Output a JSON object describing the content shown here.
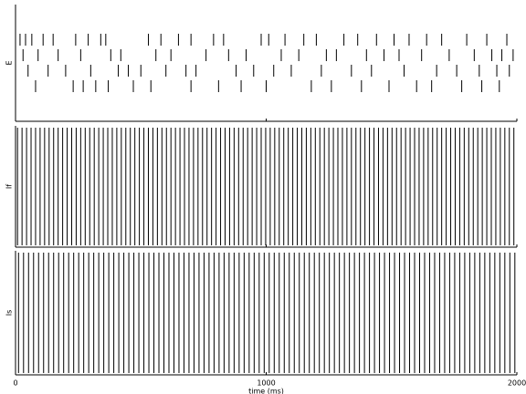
{
  "chart_data": [
    {
      "type": "raster",
      "ylabel": "E",
      "xlim": [
        0,
        2000
      ],
      "xticks": [
        0,
        1000,
        2000
      ],
      "series": [
        {
          "color": "#000000",
          "values": [
            18,
            40,
            65,
            110,
            150,
            240,
            290,
            340,
            360,
            530,
            580,
            650,
            700,
            790,
            830,
            980,
            1010,
            1075,
            1150,
            1200,
            1310,
            1365,
            1440,
            1510,
            1570,
            1640,
            1700,
            1800,
            1880,
            1960
          ]
        },
        {
          "color": "#000000",
          "values": [
            30,
            90,
            170,
            260,
            380,
            420,
            560,
            620,
            760,
            850,
            920,
            1060,
            1130,
            1240,
            1280,
            1400,
            1470,
            1530,
            1620,
            1730,
            1830,
            1900,
            1940,
            1985
          ]
        },
        {
          "color": "#000000",
          "values": [
            50,
            130,
            200,
            300,
            410,
            450,
            500,
            600,
            680,
            720,
            880,
            950,
            1030,
            1100,
            1220,
            1340,
            1420,
            1550,
            1680,
            1760,
            1850,
            1920,
            1970
          ]
        },
        {
          "color": "#000000",
          "values": [
            80,
            230,
            270,
            320,
            370,
            470,
            540,
            700,
            810,
            900,
            1000,
            1180,
            1260,
            1380,
            1490,
            1600,
            1660,
            1780,
            1860,
            1930
          ]
        }
      ]
    },
    {
      "type": "raster",
      "ylabel": "If",
      "xlim": [
        0,
        2000
      ],
      "xticks": [
        0,
        1000,
        2000
      ],
      "series": [
        {
          "color": "#000000",
          "values": [
            8,
            26,
            44,
            62,
            80,
            98,
            116,
            134,
            152,
            170,
            188,
            206,
            224,
            242,
            260,
            278,
            296,
            314,
            332,
            350,
            368,
            386,
            404,
            422,
            440,
            458,
            476,
            494,
            512,
            530,
            548,
            566,
            584,
            602,
            620,
            638,
            656,
            674,
            692,
            710,
            728,
            746,
            764,
            782,
            800,
            818,
            836,
            854,
            872,
            890,
            908,
            926,
            944,
            962,
            980,
            998,
            1016,
            1034,
            1052,
            1070,
            1088,
            1106,
            1124,
            1142,
            1160,
            1178,
            1196,
            1214,
            1232,
            1250,
            1268,
            1286,
            1304,
            1322,
            1340,
            1358,
            1376,
            1394,
            1412,
            1430,
            1448,
            1466,
            1484,
            1502,
            1520,
            1538,
            1556,
            1574,
            1592,
            1610,
            1628,
            1646,
            1664,
            1682,
            1700,
            1718,
            1736,
            1754,
            1772,
            1790,
            1808,
            1826,
            1844,
            1862,
            1880,
            1898,
            1916,
            1934,
            1952,
            1970,
            1988
          ]
        }
      ]
    },
    {
      "type": "raster",
      "ylabel": "Is",
      "xlabel": "time (ms)",
      "xlim": [
        0,
        2000
      ],
      "xticks": [
        0,
        1000,
        2000
      ],
      "series": [
        {
          "color": "#000000",
          "values": [
            12,
            32,
            52,
            72,
            92,
            112,
            132,
            152,
            172,
            192,
            212,
            232,
            252,
            272,
            292,
            312,
            332,
            352,
            372,
            392,
            412,
            432,
            452,
            472,
            492,
            512,
            532,
            552,
            572,
            592,
            612,
            632,
            652,
            672,
            692,
            712,
            732,
            752,
            772,
            792,
            812,
            832,
            852,
            872,
            892,
            912,
            932,
            952,
            972,
            992,
            1012,
            1032,
            1052,
            1072,
            1092,
            1112,
            1132,
            1152,
            1172,
            1192,
            1212,
            1232,
            1252,
            1272,
            1292,
            1312,
            1332,
            1352,
            1372,
            1392,
            1412,
            1432,
            1452,
            1472,
            1492,
            1512,
            1532,
            1552,
            1572,
            1592,
            1612,
            1632,
            1652,
            1672,
            1692,
            1712,
            1732,
            1752,
            1772,
            1792,
            1812,
            1832,
            1852,
            1872,
            1892,
            1912,
            1932,
            1952,
            1972,
            1992
          ]
        }
      ]
    }
  ]
}
